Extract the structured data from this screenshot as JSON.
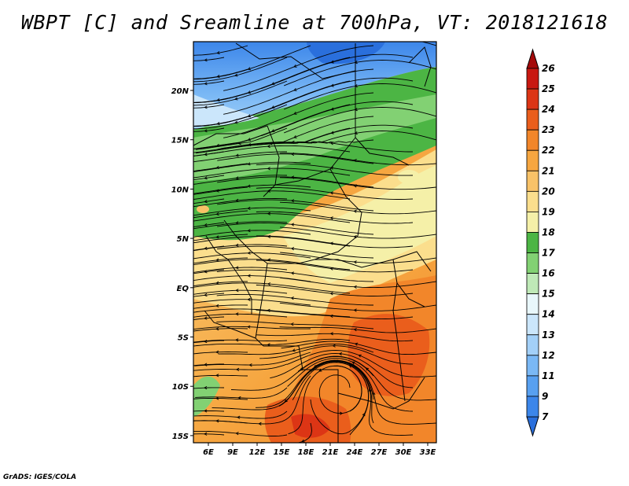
{
  "title": "WBPT [C] and Sreamline at 700hPa, VT: 2018121618",
  "credit": "GrADS: IGES/COLA",
  "map": {
    "lat_ticks": [
      "20N",
      "15N",
      "10N",
      "5N",
      "EQ",
      "5S",
      "10S",
      "15S"
    ],
    "lon_ticks": [
      "6E",
      "9E",
      "12E",
      "15E",
      "18E",
      "21E",
      "24E",
      "27E",
      "30E",
      "33E"
    ]
  },
  "colorbar": {
    "labels": [
      "7",
      "9",
      "11",
      "12",
      "13",
      "14",
      "15",
      "16",
      "17",
      "18",
      "19",
      "20",
      "21",
      "22",
      "23",
      "24",
      "25",
      "26"
    ],
    "colors": [
      "#2a6fdc",
      "#3c86ea",
      "#58a0f0",
      "#7ab8f5",
      "#a3d0f8",
      "#cbe6fb",
      "#e9f7fb",
      "#bfe9b7",
      "#82d173",
      "#4cb544",
      "#f5f0a8",
      "#fbde8d",
      "#f8c268",
      "#f6a640",
      "#f2862a",
      "#ea5e1c",
      "#dc3515",
      "#c81811",
      "#a40a0a"
    ]
  },
  "theme": {
    "ocean_or_cold": "#58a0f0",
    "green": "#4cb544",
    "warm": "#f2862a"
  }
}
